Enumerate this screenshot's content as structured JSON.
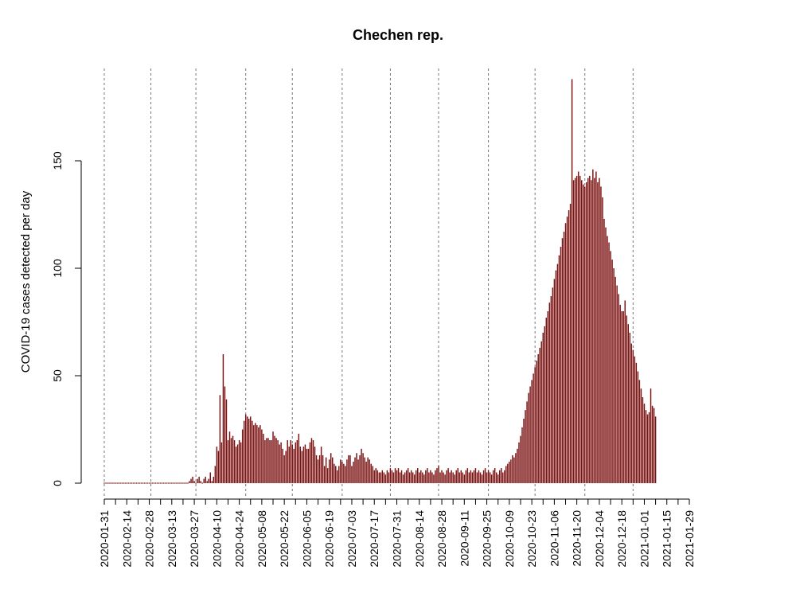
{
  "chart_data": {
    "type": "bar",
    "title": "Chechen rep.",
    "xlabel": "",
    "ylabel": "COVID-19 cases detected per day",
    "ylim": [
      0,
      190
    ],
    "yticks": [
      0,
      50,
      100,
      150
    ],
    "start_date": "2020-01-31",
    "end_date": "2021-01-29",
    "xtick_labels": [
      "2020-01-31",
      "2020-02-14",
      "2020-02-28",
      "2020-03-13",
      "2020-03-27",
      "2020-04-10",
      "2020-04-24",
      "2020-05-08",
      "2020-05-22",
      "2020-06-05",
      "2020-06-19",
      "2020-07-03",
      "2020-07-17",
      "2020-07-31",
      "2020-08-14",
      "2020-08-28",
      "2020-09-11",
      "2020-09-25",
      "2020-10-09",
      "2020-10-23",
      "2020-11-06",
      "2020-11-20",
      "2020-12-04",
      "2020-12-18",
      "2021-01-01",
      "2021-01-15",
      "2021-01-29"
    ],
    "vline_dates": [
      "2020-01-31",
      "2020-02-29",
      "2020-03-28",
      "2020-04-28",
      "2020-05-27",
      "2020-06-27",
      "2020-07-27",
      "2020-08-26",
      "2020-09-26",
      "2020-10-25",
      "2020-11-25",
      "2020-12-25"
    ],
    "bar_color": "#7a1010",
    "grid": false,
    "series": [
      {
        "values": [
          0,
          0,
          0,
          0,
          0,
          0,
          0,
          0,
          0,
          0,
          0,
          0,
          0,
          0,
          0,
          0,
          0,
          0,
          0,
          0,
          0,
          0,
          0,
          0,
          0,
          0,
          0,
          0,
          0,
          0,
          0,
          0,
          0,
          0,
          0,
          0,
          0,
          0,
          0,
          0,
          0,
          0,
          0,
          0,
          0,
          0,
          0,
          0,
          0,
          0,
          0,
          0,
          0,
          1,
          2,
          3,
          1,
          0,
          2,
          3,
          1,
          0,
          2,
          3,
          1,
          2,
          5,
          1,
          3,
          8,
          17,
          15,
          41,
          19,
          60,
          45,
          39,
          20,
          24,
          21,
          22,
          20,
          17,
          18,
          20,
          19,
          25,
          29,
          32,
          31,
          30,
          31,
          29,
          27,
          28,
          27,
          26,
          27,
          25,
          23,
          20,
          21,
          21,
          20,
          20,
          24,
          22,
          21,
          20,
          18,
          19,
          16,
          13,
          15,
          20,
          17,
          20,
          18,
          16,
          19,
          20,
          23,
          17,
          15,
          17,
          18,
          16,
          16,
          19,
          21,
          20,
          17,
          13,
          11,
          13,
          17,
          13,
          8,
          12,
          7,
          11,
          14,
          12,
          9,
          8,
          6,
          8,
          11,
          10,
          9,
          8,
          11,
          13,
          13,
          8,
          10,
          12,
          14,
          11,
          13,
          16,
          14,
          12,
          10,
          12,
          11,
          9,
          8,
          6,
          7,
          6,
          5,
          5,
          6,
          5,
          4,
          6,
          5,
          7,
          6,
          5,
          7,
          6,
          7,
          5,
          6,
          4,
          5,
          6,
          7,
          5,
          6,
          5,
          4,
          6,
          7,
          5,
          6,
          5,
          4,
          6,
          7,
          5,
          6,
          5,
          4,
          6,
          7,
          8,
          5,
          6,
          5,
          4,
          6,
          7,
          5,
          6,
          5,
          4,
          6,
          7,
          5,
          6,
          5,
          4,
          6,
          7,
          5,
          6,
          5,
          6,
          7,
          5,
          6,
          5,
          4,
          6,
          7,
          5,
          6,
          5,
          4,
          6,
          7,
          5,
          4,
          6,
          7,
          5,
          6,
          8,
          9,
          10,
          11,
          13,
          12,
          14,
          16,
          19,
          22,
          26,
          30,
          34,
          38,
          42,
          45,
          48,
          51,
          54,
          57,
          60,
          63,
          66,
          70,
          73,
          77,
          80,
          84,
          87,
          91,
          95,
          99,
          102,
          106,
          110,
          114,
          117,
          121,
          124,
          127,
          130,
          188,
          141,
          142,
          143,
          145,
          143,
          141,
          139,
          138,
          140,
          142,
          143,
          141,
          146,
          142,
          145,
          140,
          142,
          138,
          133,
          123,
          119,
          115,
          112,
          108,
          104,
          100,
          96,
          92,
          88,
          83,
          80,
          80,
          85,
          78,
          74,
          70,
          65,
          62,
          59,
          56,
          52,
          48,
          44,
          40,
          37,
          34,
          32,
          33,
          44,
          36,
          35,
          31
        ]
      }
    ]
  }
}
